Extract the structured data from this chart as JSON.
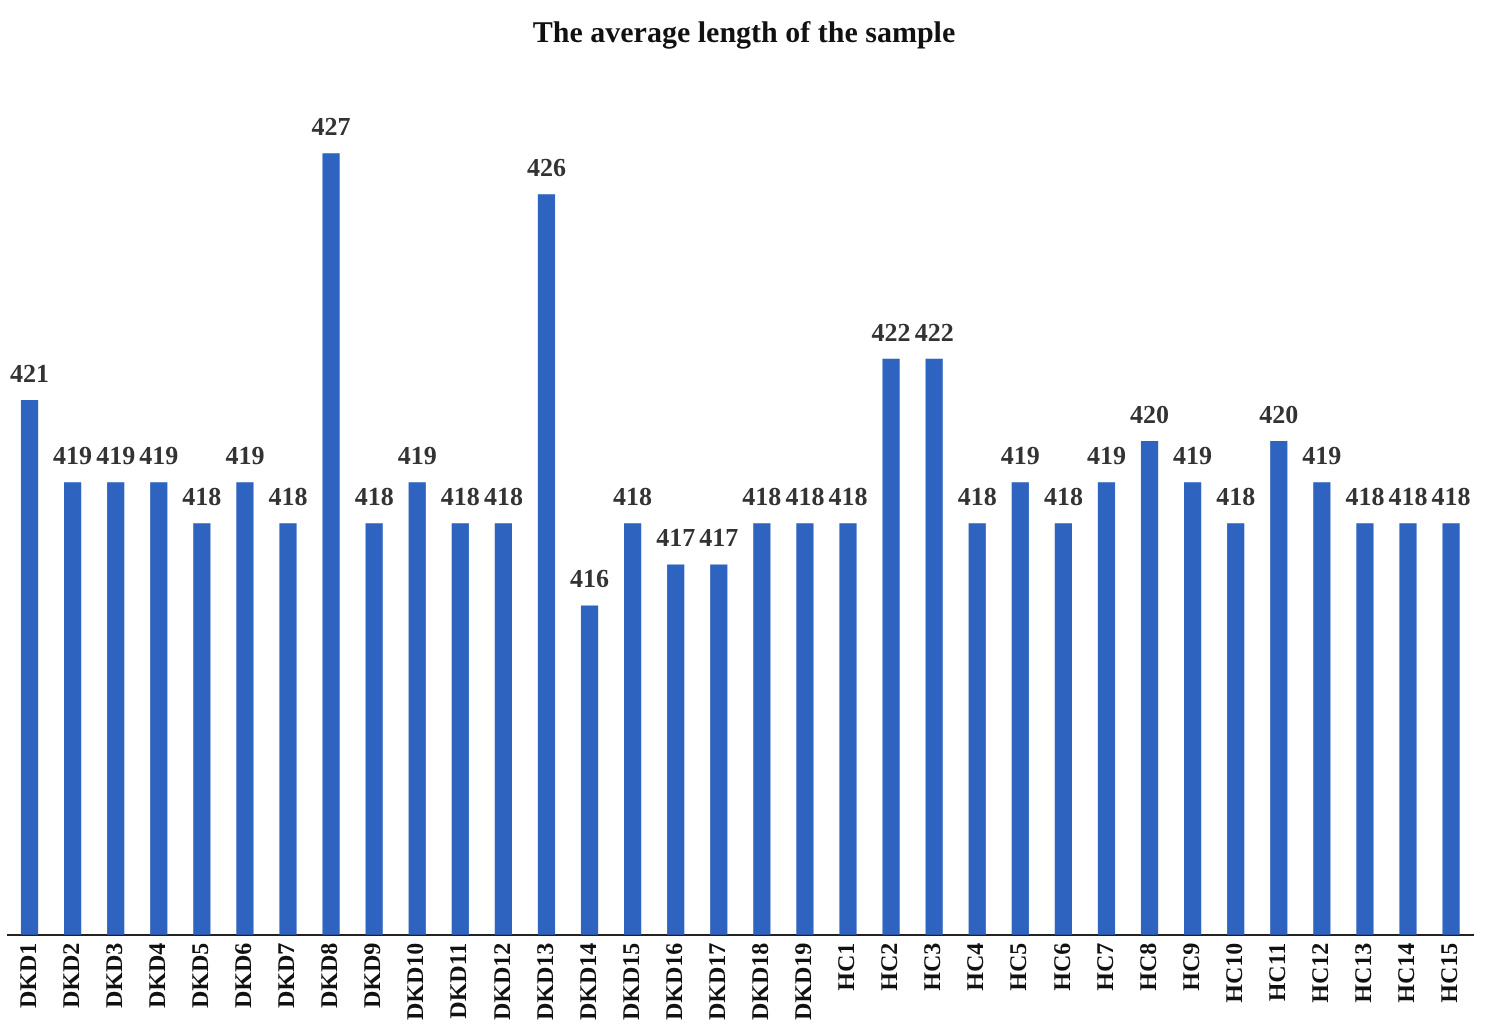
{
  "chart_data": {
    "type": "bar",
    "title": "The average length of the sample",
    "categories": [
      "DKD1",
      "DKD2",
      "DKD3",
      "DKD4",
      "DKD5",
      "DKD6",
      "DKD7",
      "DKD8",
      "DKD9",
      "DKD10",
      "DKD11",
      "DKD12",
      "DKD13",
      "DKD14",
      "DKD15",
      "DKD16",
      "DKD17",
      "DKD18",
      "DKD19",
      "HC1",
      "HC2",
      "HC3",
      "HC4",
      "HC5",
      "HC6",
      "HC7",
      "HC8",
      "HC9",
      "HC10",
      "HC11",
      "HC12",
      "HC13",
      "HC14",
      "HC15"
    ],
    "values": [
      421,
      419,
      419,
      419,
      418,
      419,
      418,
      427,
      418,
      419,
      418,
      418,
      426,
      416,
      418,
      417,
      417,
      418,
      418,
      418,
      422,
      422,
      418,
      419,
      418,
      419,
      420,
      419,
      418,
      420,
      419,
      418,
      418,
      418
    ],
    "color": "#2f63c0",
    "tick_labels": "x",
    "grid": false,
    "legend": false,
    "data_labels": true
  }
}
